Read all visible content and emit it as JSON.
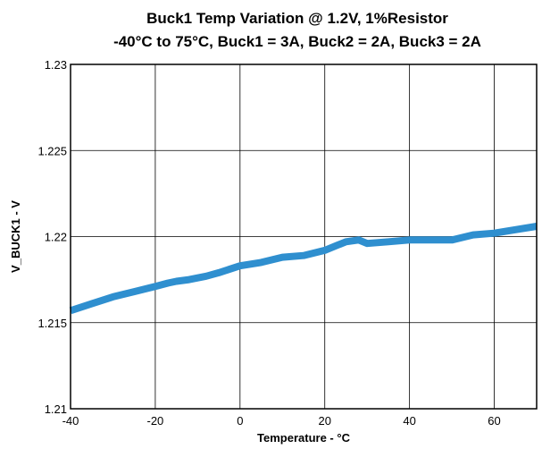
{
  "chart_data": {
    "type": "line",
    "title": "Buck1 Temp Variation @ 1.2V, 1%Resistor",
    "subtitle": "-40°C to 75°C, Buck1 = 3A, Buck2 = 2A, Buck3 = 2A",
    "xlabel": "Temperature - °C",
    "ylabel": "V_BUCK1 - V",
    "xlim": [
      -40,
      70
    ],
    "ylim": [
      1.21,
      1.23
    ],
    "x_ticks": [
      -40,
      -20,
      0,
      20,
      40,
      60
    ],
    "x_tick_labels": [
      "-40",
      "-20",
      "0",
      "20",
      "40",
      "60"
    ],
    "y_ticks": [
      1.21,
      1.215,
      1.22,
      1.225,
      1.23
    ],
    "y_tick_labels": [
      "1.21",
      "1.215",
      "1.22",
      "1.225",
      "1.23"
    ],
    "grid": true,
    "series": [
      {
        "color": "#2f8fcf",
        "x": [
          -40,
          -35,
          -30,
          -25,
          -20,
          -17,
          -15,
          -12,
          -10,
          -8,
          -5,
          0,
          5,
          10,
          15,
          20,
          23,
          25,
          28,
          30,
          35,
          40,
          45,
          50,
          55,
          60,
          65,
          70
        ],
        "y": [
          1.2157,
          1.2161,
          1.2165,
          1.2168,
          1.2171,
          1.2173,
          1.2174,
          1.2175,
          1.2176,
          1.2177,
          1.2179,
          1.2183,
          1.2185,
          1.2188,
          1.2189,
          1.2192,
          1.2195,
          1.2197,
          1.2198,
          1.2196,
          1.2197,
          1.2198,
          1.2198,
          1.2198,
          1.2201,
          1.2202,
          1.2204,
          1.2206
        ]
      }
    ]
  }
}
